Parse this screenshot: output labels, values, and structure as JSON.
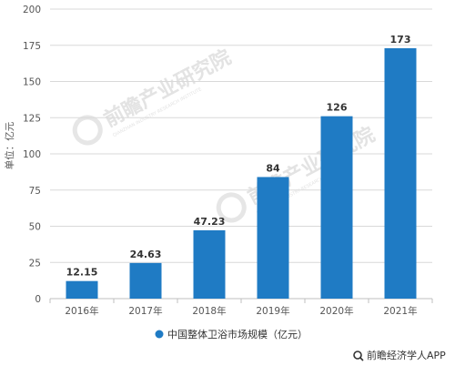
{
  "chart_data": {
    "type": "bar",
    "categories": [
      "2016年",
      "2017年",
      "2018年",
      "2019年",
      "2020年",
      "2021年"
    ],
    "values": [
      12.15,
      24.63,
      47.23,
      84,
      126,
      173
    ],
    "value_labels": [
      "12.15",
      "24.63",
      "47.23",
      "84",
      "126",
      "173"
    ],
    "ylabel": "单位：亿元",
    "ylim": [
      0,
      200
    ],
    "yticks": [
      0,
      25,
      50,
      75,
      100,
      125,
      150,
      175,
      200
    ],
    "grid": "horizontal",
    "legend": {
      "placement": "bottom-center",
      "entries": [
        "中国整体卫浴市场规模（亿元）"
      ]
    },
    "colors": {
      "bar": "#1f7bc4",
      "grid": "#d9d9d9",
      "axis": "#bfbfbf"
    }
  },
  "watermark": {
    "text": "前瞻产业研究院",
    "subtext": "QIANZHAN INDUSTRY RESEARCH INSTITUTE"
  },
  "footer": {
    "source": "前瞻经济学人APP",
    "icon": "wechat-search-icon"
  }
}
